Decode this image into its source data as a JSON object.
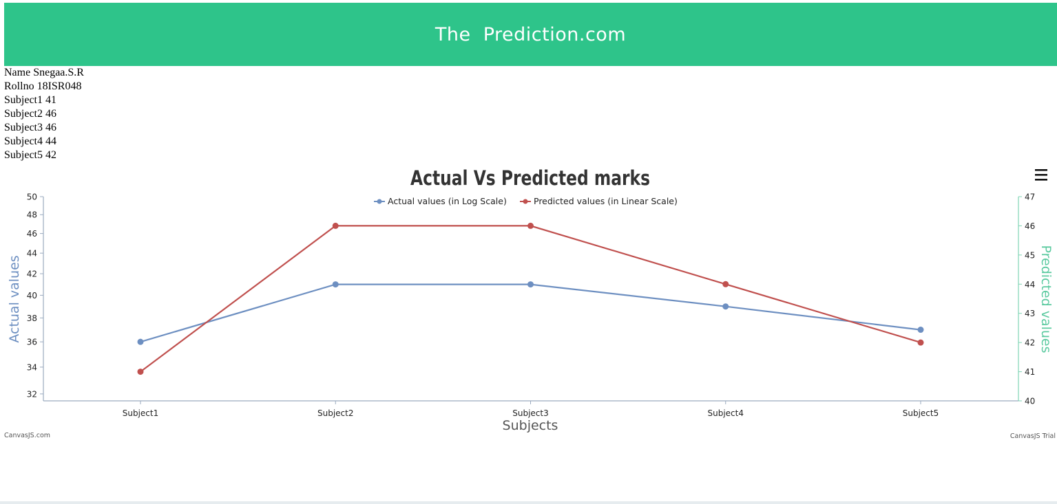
{
  "header": {
    "title": "The  Prediction.com"
  },
  "student": {
    "lines": [
      "Name Snegaa.S.R",
      "Rollno 18ISR048",
      "Subject1 41",
      "Subject2 46",
      "Subject3 46",
      "Subject4 44",
      "Subject5 42"
    ]
  },
  "chart_data": {
    "type": "line",
    "title": "Actual Vs Predicted marks",
    "xlabel": "Subjects",
    "categories": [
      "Subject1",
      "Subject2",
      "Subject3",
      "Subject4",
      "Subject5"
    ],
    "series": [
      {
        "name": "Actual values (in Log Scale)",
        "axis": "left",
        "color": "#6d8fc1",
        "values": [
          36,
          41,
          41,
          39,
          37
        ]
      },
      {
        "name": "Predicted values (in Linear Scale)",
        "axis": "right",
        "color": "#c0504e",
        "values": [
          41,
          46,
          46,
          44,
          42
        ]
      }
    ],
    "y_left": {
      "label": "Actual values",
      "label_color": "#6d8fc1",
      "scale": "log",
      "ylim": [
        31.5,
        50
      ],
      "ticks": [
        32,
        34,
        36,
        38,
        40,
        42,
        44,
        46,
        48,
        50
      ]
    },
    "y_right": {
      "label": "Predicted values",
      "label_color": "#5ccaa0",
      "scale": "linear",
      "ylim": [
        40,
        47
      ],
      "ticks": [
        40,
        41,
        42,
        43,
        44,
        45,
        46,
        47
      ]
    },
    "grid": false,
    "legend_position": "top-center",
    "credits": {
      "left": "CanvasJS.com",
      "right": "CanvasJS Trial"
    },
    "menu_icon": "hamburger-menu-icon"
  }
}
